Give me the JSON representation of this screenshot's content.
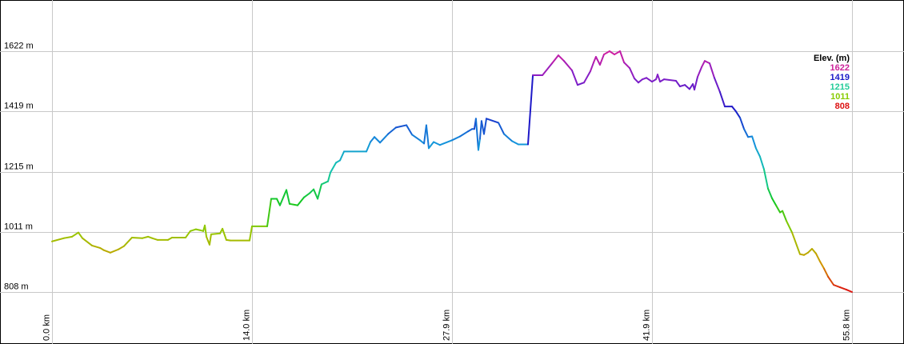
{
  "chart_data": {
    "type": "line",
    "title": "",
    "xlabel": "",
    "ylabel": "",
    "x_unit": "km",
    "y_unit": "m",
    "xlim": [
      0,
      55.8
    ],
    "ylim": [
      808,
      1622
    ],
    "grid": true,
    "x_ticks": [
      "0.0 km",
      "14.0 km",
      "27.9 km",
      "41.9 km",
      "55.8 km"
    ],
    "x_tick_values": [
      0,
      13.95,
      27.9,
      41.85,
      55.8
    ],
    "y_ticks": [
      "808 m",
      "1011 m",
      "1215 m",
      "1419 m",
      "1622 m"
    ],
    "y_tick_values": [
      808,
      1011,
      1215,
      1419,
      1622
    ],
    "line_colored_by": "elevation",
    "legend": {
      "placement": "top-right",
      "title": "Elev. (m)",
      "entries": [
        {
          "label": "1622",
          "color": "#cc2299"
        },
        {
          "label": "1419",
          "color": "#1a1ac8"
        },
        {
          "label": "1215",
          "color": "#22cc99"
        },
        {
          "label": "1011",
          "color": "#88cc00"
        },
        {
          "label": "808",
          "color": "#dd1111"
        }
      ]
    },
    "points": [
      [
        0,
        979
      ],
      [
        0.84,
        990
      ],
      [
        1.4,
        995
      ],
      [
        1.84,
        1009
      ],
      [
        2.12,
        990
      ],
      [
        2.79,
        965
      ],
      [
        3.35,
        957
      ],
      [
        3.63,
        949
      ],
      [
        4.07,
        941
      ],
      [
        4.63,
        952
      ],
      [
        5.02,
        963
      ],
      [
        5.58,
        992
      ],
      [
        6.31,
        990
      ],
      [
        6.7,
        995
      ],
      [
        6.98,
        990
      ],
      [
        7.37,
        984
      ],
      [
        8.09,
        984
      ],
      [
        8.37,
        992
      ],
      [
        9.32,
        992
      ],
      [
        9.65,
        1014
      ],
      [
        10.04,
        1020
      ],
      [
        10.32,
        1017
      ],
      [
        10.55,
        1014
      ],
      [
        10.66,
        1033
      ],
      [
        10.77,
        995
      ],
      [
        10.99,
        968
      ],
      [
        11.1,
        1003
      ],
      [
        11.72,
        1006
      ],
      [
        11.89,
        1022
      ],
      [
        12.16,
        984
      ],
      [
        12.44,
        982
      ],
      [
        13.78,
        982
      ],
      [
        13.95,
        1030
      ],
      [
        15.01,
        1030
      ],
      [
        15.29,
        1123
      ],
      [
        15.68,
        1123
      ],
      [
        15.9,
        1101
      ],
      [
        16.35,
        1153
      ],
      [
        16.57,
        1106
      ],
      [
        17.13,
        1101
      ],
      [
        17.58,
        1128
      ],
      [
        17.97,
        1142
      ],
      [
        18.25,
        1155
      ],
      [
        18.53,
        1123
      ],
      [
        18.8,
        1172
      ],
      [
        19.25,
        1182
      ],
      [
        19.42,
        1212
      ],
      [
        19.81,
        1245
      ],
      [
        20.09,
        1253
      ],
      [
        20.37,
        1283
      ],
      [
        21.93,
        1283
      ],
      [
        22.21,
        1315
      ],
      [
        22.49,
        1332
      ],
      [
        22.88,
        1313
      ],
      [
        23.44,
        1342
      ],
      [
        23.99,
        1364
      ],
      [
        24.72,
        1372
      ],
      [
        25.11,
        1340
      ],
      [
        25.67,
        1321
      ],
      [
        25.95,
        1310
      ],
      [
        26.11,
        1372
      ],
      [
        26.28,
        1294
      ],
      [
        26.62,
        1315
      ],
      [
        27.06,
        1305
      ],
      [
        27.9,
        1321
      ],
      [
        28.46,
        1334
      ],
      [
        29.02,
        1351
      ],
      [
        29.3,
        1359
      ],
      [
        29.46,
        1359
      ],
      [
        29.57,
        1394
      ],
      [
        29.74,
        1288
      ],
      [
        29.85,
        1326
      ],
      [
        29.96,
        1386
      ],
      [
        30.13,
        1342
      ],
      [
        30.3,
        1394
      ],
      [
        31.14,
        1380
      ],
      [
        31.53,
        1342
      ],
      [
        32.09,
        1318
      ],
      [
        32.53,
        1307
      ],
      [
        33.2,
        1307
      ],
      [
        33.54,
        1541
      ],
      [
        34.21,
        1541
      ],
      [
        34.88,
        1581
      ],
      [
        35.32,
        1608
      ],
      [
        35.71,
        1589
      ],
      [
        36.27,
        1557
      ],
      [
        36.66,
        1508
      ],
      [
        37.11,
        1516
      ],
      [
        37.55,
        1554
      ],
      [
        37.78,
        1584
      ],
      [
        37.94,
        1603
      ],
      [
        38.22,
        1576
      ],
      [
        38.5,
        1611
      ],
      [
        38.89,
        1622
      ],
      [
        39.23,
        1611
      ],
      [
        39.62,
        1622
      ],
      [
        39.9,
        1584
      ],
      [
        40.29,
        1565
      ],
      [
        40.62,
        1530
      ],
      [
        40.9,
        1516
      ],
      [
        41.18,
        1527
      ],
      [
        41.46,
        1532
      ],
      [
        41.85,
        1519
      ],
      [
        42.13,
        1527
      ],
      [
        42.24,
        1543
      ],
      [
        42.41,
        1519
      ],
      [
        42.69,
        1527
      ],
      [
        43.52,
        1522
      ],
      [
        43.8,
        1503
      ],
      [
        44.14,
        1508
      ],
      [
        44.47,
        1494
      ],
      [
        44.7,
        1511
      ],
      [
        44.81,
        1492
      ],
      [
        45.03,
        1535
      ],
      [
        45.31,
        1568
      ],
      [
        45.53,
        1589
      ],
      [
        45.87,
        1581
      ],
      [
        46.2,
        1532
      ],
      [
        46.59,
        1484
      ],
      [
        46.93,
        1435
      ],
      [
        47.43,
        1435
      ],
      [
        47.71,
        1418
      ],
      [
        47.99,
        1397
      ],
      [
        48.27,
        1359
      ],
      [
        48.55,
        1332
      ],
      [
        48.83,
        1334
      ],
      [
        49.1,
        1294
      ],
      [
        49.38,
        1266
      ],
      [
        49.66,
        1223
      ],
      [
        49.94,
        1158
      ],
      [
        50.22,
        1125
      ],
      [
        50.5,
        1101
      ],
      [
        50.78,
        1077
      ],
      [
        50.95,
        1082
      ],
      [
        51.22,
        1049
      ],
      [
        51.62,
        1009
      ],
      [
        52.17,
        936
      ],
      [
        52.45,
        933
      ],
      [
        52.73,
        941
      ],
      [
        53.01,
        954
      ],
      [
        53.29,
        938
      ],
      [
        53.57,
        911
      ],
      [
        53.85,
        887
      ],
      [
        54.13,
        860
      ],
      [
        54.52,
        832
      ],
      [
        54.96,
        824
      ],
      [
        55.41,
        816
      ],
      [
        55.8,
        808
      ]
    ]
  }
}
